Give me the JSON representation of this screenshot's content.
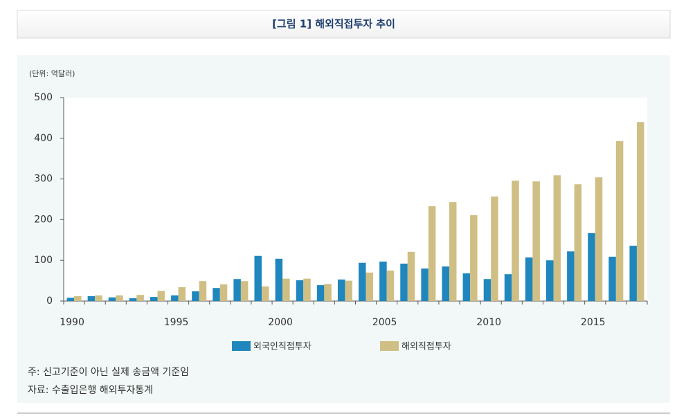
{
  "chart_data": {
    "type": "bar",
    "title": "[그림 1] 해외직접투자 추이",
    "unit_label": "(단위: 억달러)",
    "categories": [
      "1990",
      null,
      null,
      null,
      null,
      "1995",
      null,
      null,
      null,
      null,
      "2000",
      null,
      null,
      null,
      null,
      "2005",
      null,
      null,
      null,
      null,
      "2010",
      null,
      null,
      null,
      null,
      "2015",
      null,
      null
    ],
    "series": [
      {
        "name": "외국인직접투자",
        "color": "#1f87bd",
        "values": [
          8,
          12,
          9,
          7,
          10,
          14,
          24,
          32,
          54,
          111,
          104,
          51,
          39,
          53,
          94,
          97,
          92,
          80,
          85,
          68,
          54,
          66,
          107,
          100,
          122,
          167,
          109,
          136
        ]
      },
      {
        "name": "해외직접투자",
        "color": "#cfbf84",
        "values": [
          12,
          14,
          14,
          15,
          25,
          34,
          49,
          41,
          49,
          36,
          55,
          55,
          42,
          50,
          70,
          75,
          121,
          233,
          243,
          211,
          257,
          296,
          294,
          309,
          287,
          304,
          393,
          440
        ]
      }
    ],
    "ylim": [
      0,
      500
    ],
    "yticks": [
      0,
      100,
      200,
      300,
      400,
      500
    ],
    "legend": "bottom",
    "note": "주: 신고기준이 아닌 실제 송금액 기준임",
    "source": "자료: 수출입은행 해외투자통계"
  }
}
